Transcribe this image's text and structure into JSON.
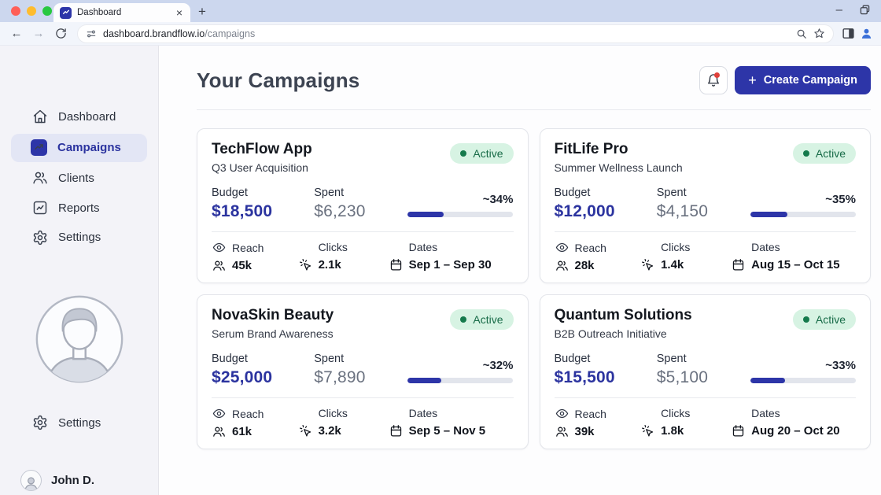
{
  "browser": {
    "tab_title": "Dashboard",
    "url_host": "dashboard.brandflow.io",
    "url_path": "/campaigns"
  },
  "icons": {
    "plus": "+",
    "close": "×",
    "minimize": "–",
    "back": "←",
    "forward": "→"
  },
  "sidebar": {
    "items": [
      {
        "label": "Dashboard"
      },
      {
        "label": "Campaigns"
      },
      {
        "label": "Clients"
      },
      {
        "label": "Reports"
      },
      {
        "label": "Settings"
      }
    ],
    "footer_settings": "Settings",
    "user_name": "John D."
  },
  "header": {
    "title": "Your Campaigns",
    "create_button": "Create Campaign"
  },
  "labels": {
    "budget": "Budget",
    "spent": "Spent",
    "reach": "Reach",
    "clicks": "Clicks",
    "dates": "Dates"
  },
  "cards": [
    {
      "name": "TechFlow App",
      "subtitle": "Q3 User Acquisition",
      "status": "Active",
      "budget": "$18,500",
      "spent": "$6,230",
      "percent_label": "~34%",
      "percent": 34,
      "reach": "45k",
      "clicks": "2.1k",
      "dates": "Sep 1 – Sep 30"
    },
    {
      "name": "FitLife Pro",
      "subtitle": "Summer Wellness Launch",
      "status": "Active",
      "budget": "$12,000",
      "spent": "$4,150",
      "percent_label": "~35%",
      "percent": 35,
      "reach": "28k",
      "clicks": "1.4k",
      "dates": "Aug 15 – Oct 15"
    },
    {
      "name": "NovaSkin Beauty",
      "subtitle": "Serum Brand Awareness",
      "status": "Active",
      "budget": "$25,000",
      "spent": "$7,890",
      "percent_label": "~32%",
      "percent": 32,
      "reach": "61k",
      "clicks": "3.2k",
      "dates": "Sep 5 – Nov 5"
    },
    {
      "name": "Quantum Solutions",
      "subtitle": "B2B Outreach Initiative",
      "status": "Active",
      "budget": "$15,500",
      "spent": "$5,100",
      "percent_label": "~33%",
      "percent": 33,
      "reach": "39k",
      "clicks": "1.8k",
      "dates": "Aug 20 – Oct 20"
    }
  ],
  "colors": {
    "accent": "#2d35a8",
    "accent-dark": "#2b339f",
    "active-badge-bg": "#d7f3e3",
    "active-badge-text": "#176b47",
    "progress-track": "#e2e5ec",
    "notification-dot": "#e0403a"
  }
}
